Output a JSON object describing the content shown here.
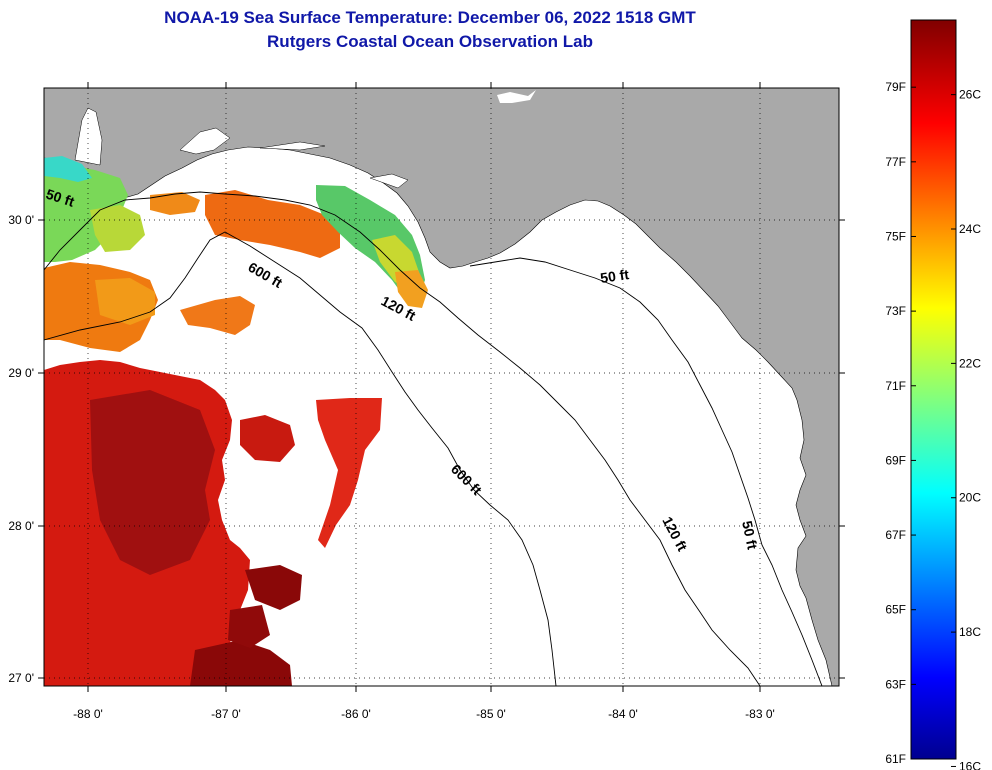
{
  "title": {
    "line1": "NOAA-19 Sea Surface Temperature:  December 06, 2022 1518 GMT",
    "line2": "Rutgers Coastal Ocean Observation Lab"
  },
  "axes": {
    "x_ticks": [
      {
        "value": -88,
        "label": "-88 0'"
      },
      {
        "value": -87,
        "label": "-87 0'"
      },
      {
        "value": -86,
        "label": "-86 0'"
      },
      {
        "value": -85,
        "label": "-85 0'"
      },
      {
        "value": -84,
        "label": "-84 0'"
      },
      {
        "value": -83,
        "label": "-83 0'"
      }
    ],
    "y_ticks": [
      {
        "value": 30,
        "label": "30 0'"
      },
      {
        "value": 29,
        "label": "29 0'"
      },
      {
        "value": 28,
        "label": "28 0'"
      },
      {
        "value": 27,
        "label": "27 0'"
      }
    ],
    "lon_range": [
      -88.33,
      -82.45
    ],
    "lat_range": [
      26.92,
      30.78
    ]
  },
  "contours": {
    "labels": [
      "50 ft",
      "600 ft",
      "120 ft",
      "50 ft",
      "600 ft",
      "120 ft",
      "50 ft"
    ]
  },
  "colorbar": {
    "fahrenheit_labels": [
      "79F",
      "77F",
      "75F",
      "73F",
      "71F",
      "69F",
      "67F",
      "65F",
      "63F",
      "61F"
    ],
    "celsius_labels": [
      "26C",
      "24C",
      "22C",
      "20C",
      "18C",
      "16C"
    ],
    "f_values": [
      79,
      77,
      75,
      73,
      71,
      69,
      67,
      65,
      63,
      61
    ],
    "c_values": [
      26,
      24,
      22,
      20,
      18,
      16
    ],
    "f_min": 61,
    "f_max": 80.8
  },
  "colors": {
    "title": "#1018a8",
    "land": "#a9a9a9",
    "no_data": "#ffffff",
    "grid": "#000000"
  }
}
